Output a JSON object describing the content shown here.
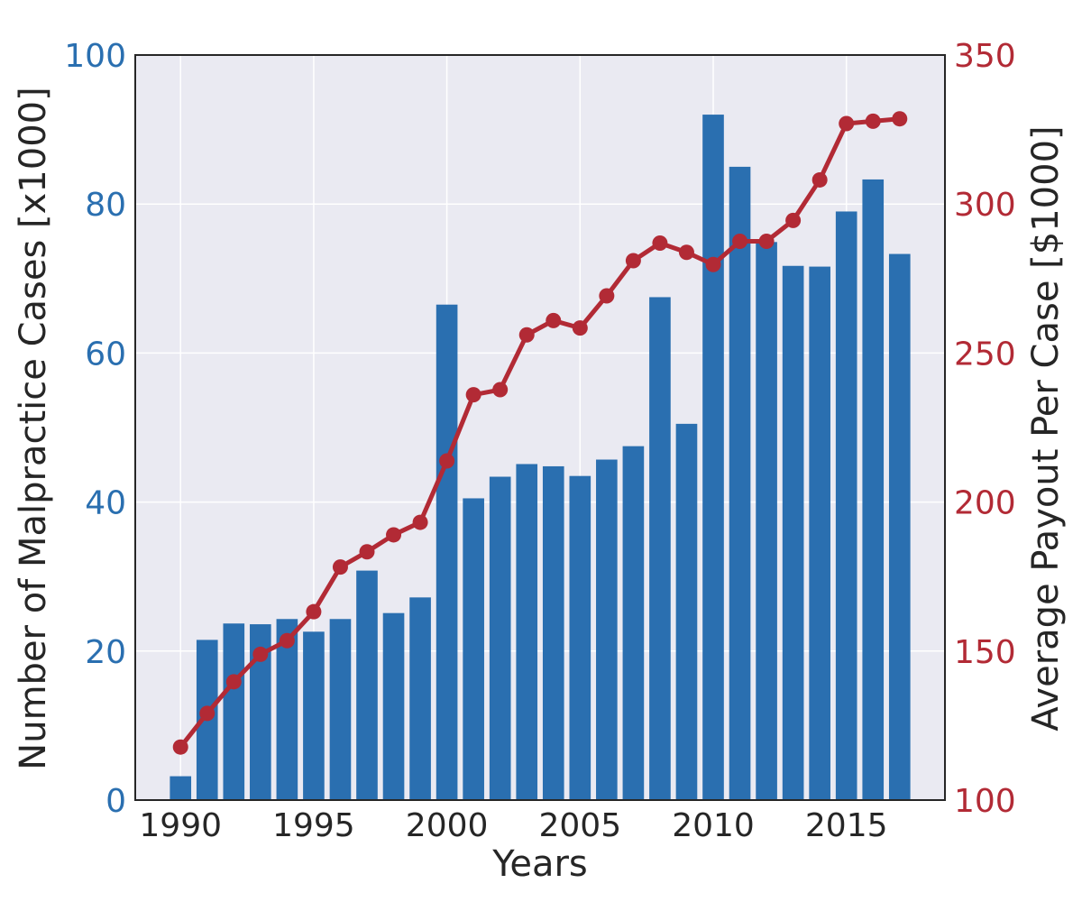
{
  "chart_data": {
    "type": "bar+line",
    "title": "",
    "xlabel": "Years",
    "ylabel_left": "Number of Malpractice Cases [x1000]",
    "ylabel_right": "Average Payout Per Case [$1000]",
    "xlim": [
      1988.3,
      2018.7
    ],
    "ylim_left": [
      0,
      100
    ],
    "ylim_right": [
      100,
      350
    ],
    "x_ticks": [
      "1990",
      "1995",
      "2000",
      "2005",
      "2010",
      "2015"
    ],
    "y_ticks_left": [
      "0",
      "20",
      "40",
      "60",
      "80",
      "100"
    ],
    "y_ticks_right": [
      "100",
      "150",
      "200",
      "250",
      "300",
      "350"
    ],
    "grid": true,
    "colors": {
      "bars": "#2a6fb0",
      "line": "#b22a35",
      "left_axis_text": "#2a6fb0",
      "right_axis_text": "#b22a35",
      "plot_background": "#eaeaf2",
      "grid": "#ffffff"
    },
    "years": [
      1990,
      1991,
      1992,
      1993,
      1994,
      1995,
      1996,
      1997,
      1998,
      1999,
      2000,
      2001,
      2002,
      2003,
      2004,
      2005,
      2006,
      2007,
      2008,
      2009,
      2010,
      2011,
      2012,
      2013,
      2014,
      2015,
      2016,
      2017
    ],
    "series": [
      {
        "axis": "left",
        "type": "bar",
        "values": [
          3.2,
          21.5,
          23.7,
          23.6,
          24.3,
          22.6,
          24.3,
          30.8,
          25.1,
          27.2,
          66.5,
          40.5,
          43.4,
          45.1,
          44.8,
          43.5,
          45.7,
          47.5,
          67.5,
          50.5,
          92.0,
          85.0,
          74.9,
          71.7,
          71.6,
          79.0,
          83.3,
          73.3
        ]
      },
      {
        "axis": "right",
        "type": "line",
        "values": [
          117.8,
          129.1,
          139.7,
          148.9,
          153.5,
          163.2,
          178.2,
          183.3,
          189.0,
          193.2,
          213.8,
          236.0,
          237.7,
          256.1,
          260.9,
          258.4,
          269.2,
          281.0,
          286.9,
          283.8,
          279.7,
          287.5,
          287.5,
          294.5,
          308.1,
          327.0,
          327.8,
          328.6
        ]
      }
    ]
  }
}
